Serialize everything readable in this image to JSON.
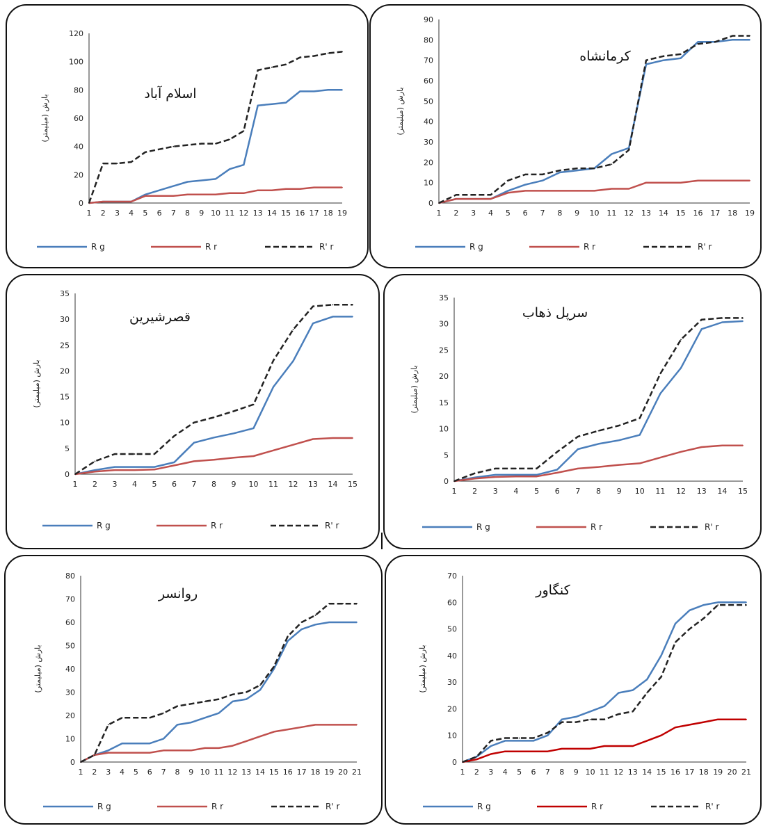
{
  "colors": {
    "rg": "#4a7ebb",
    "rr": "#c0504d",
    "rr_dark": "#c00000",
    "rpr": "#222222",
    "axis": "#333333"
  },
  "legend_labels": {
    "rg": "R g",
    "rr": "R r",
    "rpr": "R' r"
  },
  "chart_data": [
    {
      "id": "islamabad",
      "type": "line",
      "title": "اسلام آباد",
      "xlabel": "",
      "ylabel": "بارش (میلیمتر)",
      "x": [
        1,
        2,
        3,
        4,
        5,
        6,
        7,
        8,
        9,
        10,
        11,
        12,
        13,
        14,
        15,
        16,
        17,
        18,
        19
      ],
      "ylim": [
        0,
        120
      ],
      "yticks": [
        0,
        20,
        40,
        60,
        80,
        100,
        120
      ],
      "grid": false,
      "legend": "bottom",
      "series": [
        {
          "name": "R g",
          "key": "rg",
          "dashed": false,
          "values": [
            0,
            1,
            1,
            1,
            6,
            9,
            12,
            15,
            16,
            17,
            24,
            27,
            69,
            70,
            71,
            79,
            79,
            80,
            80
          ]
        },
        {
          "name": "R r",
          "key": "rr",
          "dashed": false,
          "values": [
            0,
            1,
            1,
            1,
            5,
            5,
            5,
            6,
            6,
            6,
            7,
            7,
            9,
            9,
            10,
            10,
            11,
            11,
            11
          ]
        },
        {
          "name": "R' r",
          "key": "rpr",
          "dashed": true,
          "values": [
            0,
            28,
            28,
            29,
            36,
            38,
            40,
            41,
            42,
            42,
            45,
            51,
            94,
            96,
            98,
            103,
            104,
            106,
            107
          ]
        }
      ]
    },
    {
      "id": "kermanshah",
      "type": "line",
      "title": "کرمانشاه",
      "xlabel": "",
      "ylabel": "بارش (میلیمتر)",
      "x": [
        1,
        2,
        3,
        4,
        5,
        6,
        7,
        8,
        9,
        10,
        11,
        12,
        13,
        14,
        15,
        16,
        17,
        18,
        19
      ],
      "ylim": [
        0,
        90
      ],
      "yticks": [
        0,
        10,
        20,
        30,
        40,
        50,
        60,
        70,
        80,
        90
      ],
      "grid": false,
      "legend": "bottom",
      "series": [
        {
          "name": "R g",
          "key": "rg",
          "dashed": false,
          "values": [
            0,
            2,
            2,
            2,
            6,
            9,
            11,
            15,
            16,
            17,
            24,
            27,
            68,
            70,
            71,
            79,
            79,
            80,
            80
          ]
        },
        {
          "name": "R r",
          "key": "rr",
          "dashed": false,
          "values": [
            0,
            2,
            2,
            2,
            5,
            6,
            6,
            6,
            6,
            6,
            7,
            7,
            10,
            10,
            10,
            11,
            11,
            11,
            11
          ]
        },
        {
          "name": "R' r",
          "key": "rpr",
          "dashed": true,
          "values": [
            0,
            4,
            4,
            4,
            11,
            14,
            14,
            16,
            17,
            17,
            19,
            26,
            70,
            72,
            73,
            78,
            79,
            82,
            82
          ]
        }
      ]
    },
    {
      "id": "qasr-shirin",
      "type": "line",
      "title": "قصرشیرین",
      "xlabel": "",
      "ylabel": "بارش (میلیمتر)",
      "x": [
        1,
        2,
        3,
        4,
        5,
        6,
        7,
        8,
        9,
        10,
        11,
        12,
        13,
        14,
        15
      ],
      "ylim": [
        0,
        35
      ],
      "yticks": [
        0,
        5,
        10,
        15,
        20,
        25,
        30,
        35
      ],
      "grid": false,
      "legend": "bottom",
      "series": [
        {
          "name": "R g",
          "key": "rg",
          "dashed": false,
          "values": [
            0,
            0.8,
            1.4,
            1.4,
            1.4,
            2.3,
            6.1,
            7.1,
            7.9,
            8.9,
            16.9,
            21.9,
            29.2,
            30.5,
            30.5
          ]
        },
        {
          "name": "R r",
          "key": "rr",
          "dashed": false,
          "values": [
            0,
            0.5,
            0.8,
            0.8,
            0.9,
            1.7,
            2.5,
            2.8,
            3.2,
            3.5,
            4.6,
            5.7,
            6.8,
            7.0,
            7.0
          ]
        },
        {
          "name": "R' r",
          "key": "rpr",
          "dashed": true,
          "values": [
            0,
            2.5,
            3.9,
            3.9,
            3.9,
            7.4,
            10.0,
            11.0,
            12.2,
            13.5,
            22.0,
            28.0,
            32.5,
            32.8,
            32.8
          ]
        }
      ]
    },
    {
      "id": "sarpol-zahab",
      "type": "line",
      "title": "سرپل ذهاب",
      "xlabel": "",
      "ylabel": "بارش (میلیمتر)",
      "x": [
        1,
        2,
        3,
        4,
        5,
        6,
        7,
        8,
        9,
        10,
        11,
        12,
        13,
        14,
        15
      ],
      "ylim": [
        0,
        35
      ],
      "yticks": [
        0,
        5,
        10,
        15,
        20,
        25,
        30,
        35
      ],
      "grid": false,
      "legend": "bottom",
      "series": [
        {
          "name": "R g",
          "key": "rg",
          "dashed": false,
          "values": [
            0,
            0.7,
            1.2,
            1.2,
            1.2,
            2.2,
            6.1,
            7.1,
            7.8,
            8.8,
            16.7,
            21.6,
            29.0,
            30.3,
            30.5
          ]
        },
        {
          "name": "R r",
          "key": "rr",
          "dashed": false,
          "values": [
            0,
            0.5,
            0.8,
            0.9,
            0.9,
            1.6,
            2.4,
            2.7,
            3.1,
            3.4,
            4.5,
            5.6,
            6.5,
            6.8,
            6.8
          ]
        },
        {
          "name": "R' r",
          "key": "rpr",
          "dashed": true,
          "values": [
            0,
            1.5,
            2.4,
            2.4,
            2.4,
            5.6,
            8.5,
            9.6,
            10.6,
            12.0,
            20.5,
            27.0,
            30.8,
            31.1,
            31.1
          ]
        }
      ]
    },
    {
      "id": "ravansar",
      "type": "line",
      "title": "روانسر",
      "xlabel": "",
      "ylabel": "بارش (میلیمتر)",
      "x": [
        1,
        2,
        3,
        4,
        5,
        6,
        7,
        8,
        9,
        10,
        11,
        12,
        13,
        14,
        15,
        16,
        17,
        18,
        19,
        20,
        21
      ],
      "ylim": [
        0,
        80
      ],
      "yticks": [
        0,
        10,
        20,
        30,
        40,
        50,
        60,
        70,
        80
      ],
      "grid": false,
      "legend": "bottom",
      "series": [
        {
          "name": "R g",
          "key": "rg",
          "dashed": false,
          "values": [
            0,
            3,
            5,
            8,
            8,
            8,
            10,
            16,
            17,
            19,
            21,
            26,
            27,
            31,
            40,
            52,
            57,
            59,
            60,
            60,
            60
          ]
        },
        {
          "name": "R r",
          "key": "rr",
          "dashed": false,
          "values": [
            0,
            3,
            4,
            4,
            4,
            4,
            5,
            5,
            5,
            6,
            6,
            7,
            9,
            11,
            13,
            14,
            15,
            16,
            16,
            16,
            16
          ]
        },
        {
          "name": "R' r",
          "key": "rpr",
          "dashed": true,
          "values": [
            0,
            3,
            16,
            19,
            19,
            19,
            21,
            24,
            25,
            26,
            27,
            29,
            30,
            33,
            41,
            54,
            60,
            63,
            68,
            68,
            68
          ]
        }
      ]
    },
    {
      "id": "kangavar",
      "type": "line",
      "title": "کنگاور",
      "xlabel": "",
      "ylabel": "بارش (میلیمتر)",
      "x": [
        1,
        2,
        3,
        4,
        5,
        6,
        7,
        8,
        9,
        10,
        11,
        12,
        13,
        14,
        15,
        16,
        17,
        18,
        19,
        20,
        21
      ],
      "ylim": [
        0,
        70
      ],
      "yticks": [
        0,
        10,
        20,
        30,
        40,
        50,
        60,
        70
      ],
      "grid": false,
      "legend": "bottom",
      "series": [
        {
          "name": "R g",
          "key": "rg",
          "dashed": false,
          "values": [
            0,
            2,
            6,
            8,
            8,
            8,
            10,
            16,
            17,
            19,
            21,
            26,
            27,
            31,
            40,
            52,
            57,
            59,
            60,
            60,
            60
          ]
        },
        {
          "name": "R r",
          "key": "rr_dark",
          "dashed": false,
          "values": [
            0,
            1,
            3,
            4,
            4,
            4,
            4,
            5,
            5,
            5,
            6,
            6,
            6,
            8,
            10,
            13,
            14,
            15,
            16,
            16,
            16
          ]
        },
        {
          "name": "R' r",
          "key": "rpr",
          "dashed": true,
          "values": [
            0,
            2,
            8,
            9,
            9,
            9,
            11,
            15,
            15,
            16,
            16,
            18,
            19,
            26,
            32,
            45,
            50,
            54,
            59,
            59,
            59
          ]
        }
      ]
    }
  ]
}
